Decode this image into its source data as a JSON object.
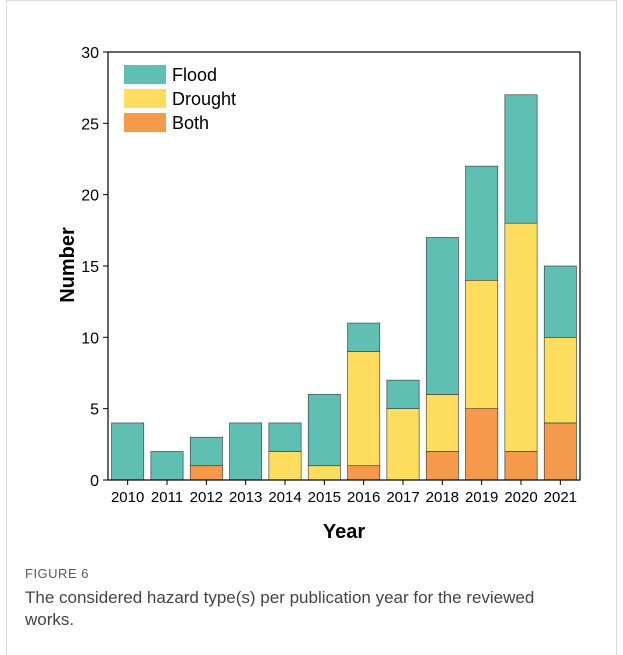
{
  "figure": {
    "label": "FIGURE 6",
    "caption": "The considered hazard type(s) per publication year for the reviewed works."
  },
  "chart_data": {
    "type": "bar",
    "stacked": true,
    "categories": [
      "2010",
      "2011",
      "2012",
      "2013",
      "2014",
      "2015",
      "2016",
      "2017",
      "2018",
      "2019",
      "2020",
      "2021"
    ],
    "series": [
      {
        "name": "Both",
        "color": "#f5994a",
        "values": [
          0,
          0,
          1,
          0,
          0,
          0,
          1,
          0,
          2,
          5,
          2,
          4
        ]
      },
      {
        "name": "Drought",
        "color": "#fddc5e",
        "values": [
          0,
          0,
          0,
          0,
          2,
          1,
          8,
          5,
          4,
          9,
          16,
          6
        ]
      },
      {
        "name": "Flood",
        "color": "#5fbfb2",
        "values": [
          4,
          2,
          2,
          4,
          2,
          5,
          2,
          2,
          11,
          8,
          9,
          5
        ]
      }
    ],
    "legend_order": [
      "Flood",
      "Drought",
      "Both"
    ],
    "legend_position": "top-left",
    "xlabel": "Year",
    "ylabel": "Number",
    "ylim": [
      0,
      30
    ],
    "yticks": [
      0,
      5,
      10,
      15,
      20,
      25,
      30
    ],
    "grid": false
  }
}
